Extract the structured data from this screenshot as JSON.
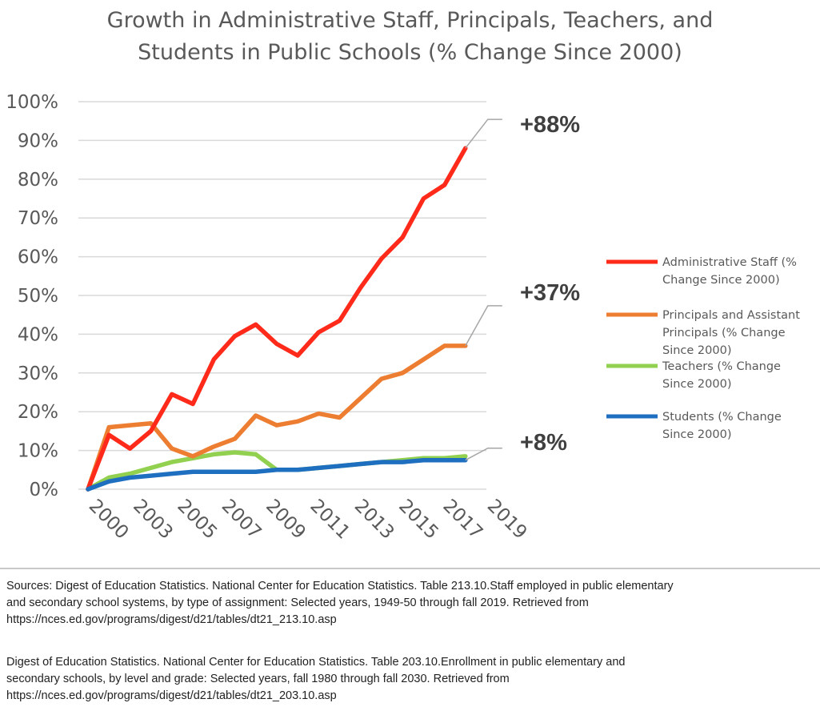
{
  "chart_data": {
    "type": "line",
    "title_lines": [
      "Growth in Administrative Staff, Principals, Teachers, and",
      "Students in Public Schools (% Change Since 2000)"
    ],
    "x": [
      2000,
      2001,
      2002,
      2003,
      2004,
      2005,
      2006,
      2007,
      2008,
      2009,
      2010,
      2011,
      2012,
      2013,
      2014,
      2015,
      2016,
      2017,
      2018,
      2019
    ],
    "x_tick_labels": [
      "2000",
      "2003",
      "2005",
      "2007",
      "2009",
      "2011",
      "2013",
      "2015",
      "2017",
      "2019"
    ],
    "ylim": [
      0,
      100
    ],
    "y_tick_labels": [
      "0%",
      "10%",
      "20%",
      "30%",
      "40%",
      "50%",
      "60%",
      "70%",
      "80%",
      "90%",
      "100%"
    ],
    "grid": true,
    "legend_position": "right",
    "series": [
      {
        "name": "Administrative Staff (% Change Since 2000)",
        "legend_lines": [
          "Administrative Staff (%",
          "Change Since 2000)"
        ],
        "color": "#ff2a1a",
        "values": [
          0,
          14,
          10.5,
          15,
          24.5,
          22,
          33.5,
          39.5,
          42.5,
          37.5,
          34.5,
          40.5,
          43.5,
          52,
          59.5,
          65,
          75,
          78.5,
          88,
          null
        ]
      },
      {
        "name": "Principals and Assistant Principals (% Change Since 2000)",
        "legend_lines": [
          "Principals and Assistant",
          "Principals (% Change",
          "Since 2000)"
        ],
        "color": "#ed7d31",
        "values": [
          0,
          16,
          16.5,
          17,
          10.5,
          8.5,
          11,
          13,
          19,
          16.5,
          17.5,
          19.5,
          18.5,
          23.5,
          28.5,
          30,
          33.5,
          37,
          37,
          null
        ]
      },
      {
        "name": "Teachers (% Change Since 2000)",
        "legend_lines": [
          "Teachers (% Change",
          "Since 2000)"
        ],
        "color": "#92d050",
        "values": [
          0,
          3,
          4,
          5.5,
          7,
          8,
          9,
          9.5,
          9,
          5,
          5,
          5.5,
          6,
          6.5,
          7,
          7.5,
          8,
          8,
          8.5,
          null
        ]
      },
      {
        "name": "Students (% Change Since 2000)",
        "legend_lines": [
          "Students (% Change",
          "Since 2000)"
        ],
        "color": "#1f6fc0",
        "values": [
          0,
          2,
          3,
          3.5,
          4,
          4.5,
          4.5,
          4.5,
          4.5,
          5,
          5,
          5.5,
          6,
          6.5,
          7,
          7,
          7.5,
          7.5,
          7.5,
          null
        ]
      }
    ],
    "annotations": [
      {
        "text": "+88%",
        "series": 0
      },
      {
        "text": "+37%",
        "series": 1
      },
      {
        "text": "+8%",
        "series": 3
      }
    ]
  },
  "sources": {
    "paragraph_1": [
      "Sources: Digest of Education Statistics. National Center for Education Statistics. Table 213.10.Staff employed in public elementary",
      "and secondary school systems, by type of assignment: Selected years, 1949-50 through fall 2019. Retrieved from",
      "https://nces.ed.gov/programs/digest/d21/tables/dt21_213.10.asp"
    ],
    "paragraph_2": [
      "Digest of Education Statistics. National Center for Education Statistics. Table 203.10.Enrollment in public elementary and",
      "secondary schools, by level and grade: Selected years, fall 1980 through fall 2030. Retrieved from",
      "https://nces.ed.gov/programs/digest/d21/tables/dt21_203.10.asp"
    ]
  }
}
